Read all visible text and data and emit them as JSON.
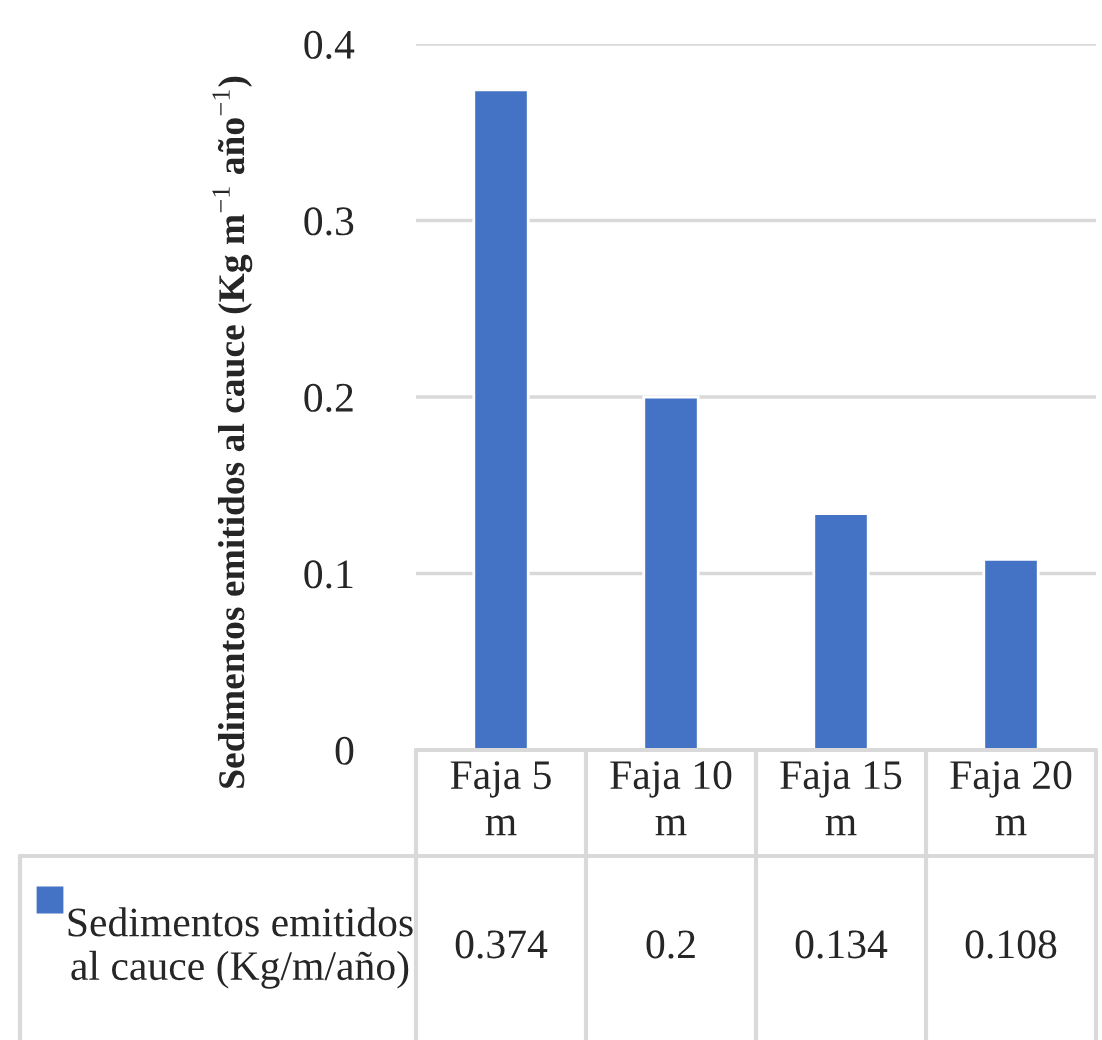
{
  "chart_data": {
    "type": "bar",
    "ylabel": "Sedimentos emitidos al cauce (Kg m$^{−1}$ año$^{−1}$)",
    "categories": [
      "Faja 5 m",
      "Faja 10 m",
      "Faja 15 m",
      "Faja 20 m"
    ],
    "series": [
      {
        "name": "Sedimentos emitidos al cauce (Kg/m/año)",
        "color": "#4472c4",
        "values": [
          0.374,
          0.2,
          0.134,
          0.108
        ]
      }
    ],
    "ylim": [
      0,
      0.4
    ],
    "yticks": [
      0,
      0.1,
      0.2,
      0.3,
      0.4
    ],
    "grid": "y",
    "data_labels": true,
    "legend": "bottom"
  }
}
